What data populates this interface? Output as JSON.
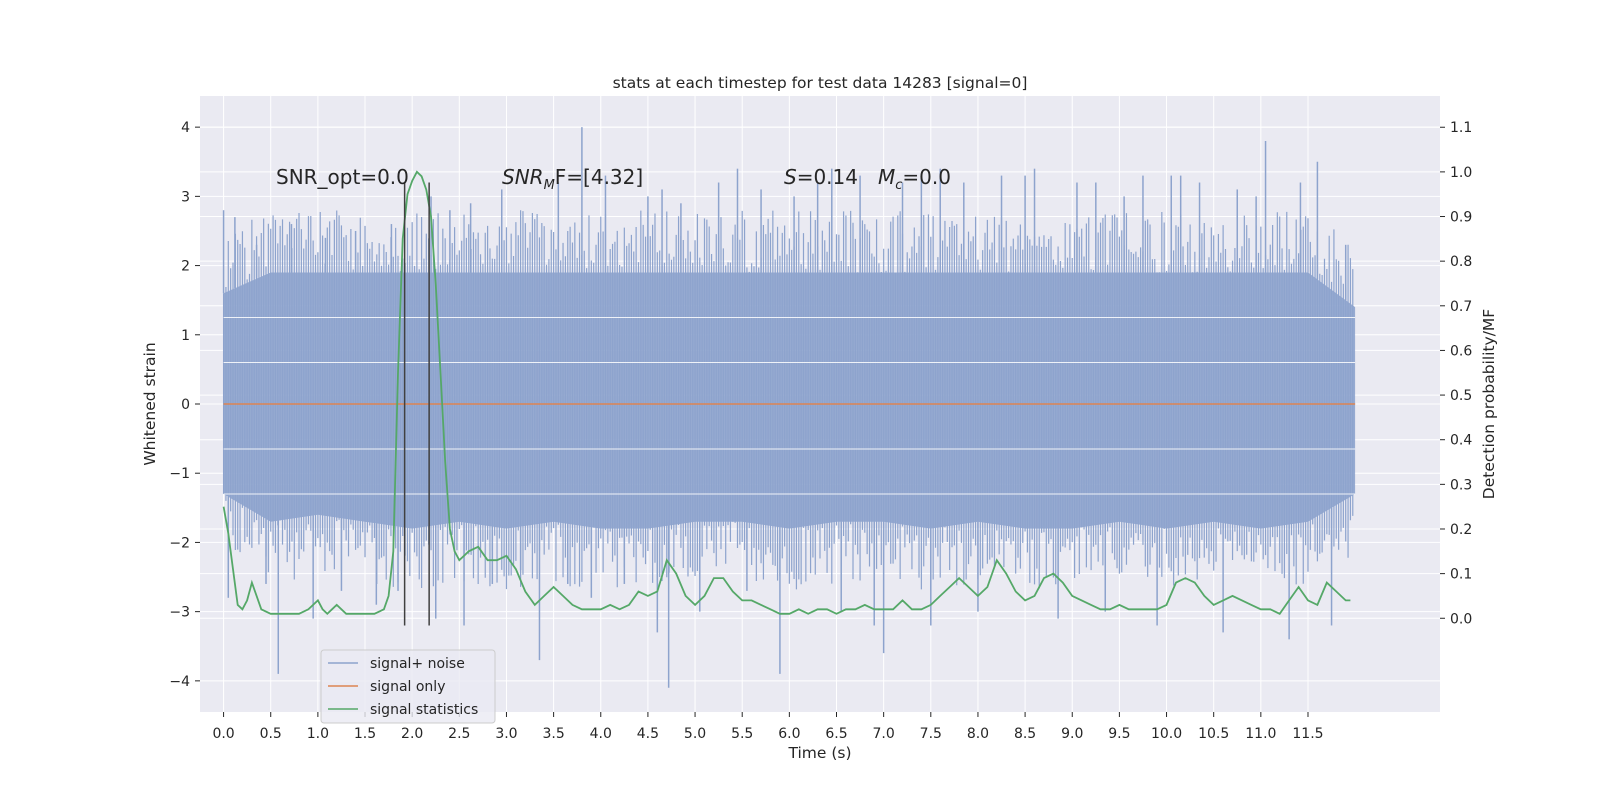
{
  "chart_data": {
    "type": "line",
    "title": "stats at each timestep for test data 14283 [signal=0]",
    "xlabel": "Time (s)",
    "ylabel": "Whitened strain",
    "ylabel_right": "Detection probability/MF",
    "xlim": [
      -0.25,
      12.9
    ],
    "ylim": [
      -4.45,
      4.45
    ],
    "ylim_right": [
      -0.21,
      1.17
    ],
    "x_ticks": [
      "0.0",
      "0.5",
      "1.0",
      "1.5",
      "2.0",
      "2.5",
      "3.0",
      "3.5",
      "4.0",
      "4.5",
      "5.0",
      "5.5",
      "6.0",
      "6.5",
      "7.0",
      "7.5",
      "8.0",
      "8.5",
      "9.0",
      "9.5",
      "10.0",
      "10.5",
      "11.0",
      "11.5"
    ],
    "y_ticks": [
      "4",
      "3",
      "2",
      "1",
      "0",
      "−1",
      "−2",
      "−3",
      "−4"
    ],
    "y_ticks_right": [
      "1.1",
      "1.0",
      "0.9",
      "0.8",
      "0.7",
      "0.6",
      "0.5",
      "0.4",
      "0.3",
      "0.2",
      "0.1",
      "0.0"
    ],
    "grid": true,
    "legend_position": "lower-left",
    "annotations": {
      "snr_opt": "SNR_opt=0.0",
      "snr_mf_label": "SNR",
      "snr_mf_sub": "M",
      "snr_mf_value": "F=[4.32]",
      "s_label": "S",
      "s_value": "=0.14",
      "mc_label": "M",
      "mc_sub": "c",
      "mc_value": "=0.0"
    },
    "vertical_lines_x": [
      1.92,
      2.18
    ],
    "noise_band": {
      "x_range": [
        0.0,
        12.0
      ],
      "envelope": [
        [
          0.0,
          -1.3,
          1.6
        ],
        [
          0.5,
          -1.7,
          1.9
        ],
        [
          1.0,
          -1.6,
          1.9
        ],
        [
          1.5,
          -1.7,
          1.9
        ],
        [
          2.0,
          -1.8,
          1.9
        ],
        [
          2.5,
          -1.7,
          1.9
        ],
        [
          3.0,
          -1.8,
          1.9
        ],
        [
          3.5,
          -1.7,
          1.9
        ],
        [
          4.0,
          -1.8,
          1.9
        ],
        [
          4.5,
          -1.8,
          1.9
        ],
        [
          5.0,
          -1.7,
          1.9
        ],
        [
          5.5,
          -1.7,
          1.9
        ],
        [
          6.0,
          -1.8,
          1.9
        ],
        [
          6.5,
          -1.7,
          1.9
        ],
        [
          7.0,
          -1.7,
          1.9
        ],
        [
          7.5,
          -1.8,
          1.9
        ],
        [
          8.0,
          -1.7,
          1.9
        ],
        [
          8.5,
          -1.8,
          1.9
        ],
        [
          9.0,
          -1.8,
          1.9
        ],
        [
          9.5,
          -1.7,
          1.9
        ],
        [
          10.0,
          -1.8,
          1.9
        ],
        [
          10.5,
          -1.7,
          1.9
        ],
        [
          11.0,
          -1.8,
          1.9
        ],
        [
          11.5,
          -1.7,
          1.9
        ],
        [
          12.0,
          -1.3,
          1.4
        ]
      ],
      "spikes": [
        [
          0.0,
          2.8
        ],
        [
          0.05,
          -2.8
        ],
        [
          0.12,
          2.7
        ],
        [
          0.35,
          2.3
        ],
        [
          0.45,
          -2.6
        ],
        [
          0.58,
          -3.9
        ],
        [
          0.72,
          2.6
        ],
        [
          0.95,
          -3.1
        ],
        [
          1.08,
          2.4
        ],
        [
          1.25,
          -2.7
        ],
        [
          1.4,
          2.5
        ],
        [
          1.62,
          -2.9
        ],
        [
          1.78,
          2.6
        ],
        [
          1.85,
          -2.7
        ],
        [
          2.2,
          3.0
        ],
        [
          2.25,
          -3.1
        ],
        [
          2.4,
          2.8
        ],
        [
          2.55,
          -3.2
        ],
        [
          2.62,
          2.9
        ],
        [
          2.85,
          -2.6
        ],
        [
          2.95,
          3.1
        ],
        [
          3.15,
          -2.4
        ],
        [
          3.35,
          -3.7
        ],
        [
          3.55,
          3.2
        ],
        [
          3.65,
          -2.6
        ],
        [
          3.8,
          4.0
        ],
        [
          3.9,
          -2.8
        ],
        [
          4.05,
          3.3
        ],
        [
          4.25,
          -2.6
        ],
        [
          4.5,
          3.0
        ],
        [
          4.6,
          -3.3
        ],
        [
          4.65,
          3.1
        ],
        [
          4.72,
          -4.1
        ],
        [
          4.85,
          2.9
        ],
        [
          5.05,
          -3.0
        ],
        [
          5.25,
          3.2
        ],
        [
          5.45,
          3.4
        ],
        [
          5.55,
          -2.7
        ],
        [
          5.7,
          3.1
        ],
        [
          5.9,
          -3.9
        ],
        [
          6.05,
          3.0
        ],
        [
          6.3,
          3.2
        ],
        [
          6.45,
          3.4
        ],
        [
          6.55,
          -3.0
        ],
        [
          6.75,
          3.3
        ],
        [
          6.9,
          -3.2
        ],
        [
          7.0,
          -3.6
        ],
        [
          7.2,
          3.2
        ],
        [
          7.4,
          3.3
        ],
        [
          7.5,
          -3.2
        ],
        [
          7.6,
          3.4
        ],
        [
          7.85,
          3.2
        ],
        [
          8.0,
          -3.0
        ],
        [
          8.25,
          3.3
        ],
        [
          8.5,
          3.3
        ],
        [
          8.6,
          3.4
        ],
        [
          8.85,
          -3.1
        ],
        [
          9.05,
          3.2
        ],
        [
          9.25,
          3.2
        ],
        [
          9.35,
          -3.0
        ],
        [
          9.55,
          3.0
        ],
        [
          9.75,
          3.3
        ],
        [
          9.9,
          -3.2
        ],
        [
          10.05,
          3.3
        ],
        [
          10.15,
          3.3
        ],
        [
          10.35,
          3.2
        ],
        [
          10.6,
          -3.3
        ],
        [
          10.75,
          3.1
        ],
        [
          10.95,
          3.0
        ],
        [
          11.05,
          3.8
        ],
        [
          11.3,
          -3.4
        ],
        [
          11.42,
          3.2
        ],
        [
          11.6,
          3.5
        ],
        [
          11.75,
          -3.2
        ],
        [
          11.9,
          2.3
        ]
      ]
    },
    "series": [
      {
        "name": "signal+ noise",
        "color": "#8da3cd",
        "kind": "noise_band"
      },
      {
        "name": "signal only",
        "color": "#dd8452",
        "x": [
          0.0,
          12.0
        ],
        "y": [
          0.0,
          0.0
        ]
      },
      {
        "name": "signal statistics",
        "color": "#55a868",
        "axis": "right",
        "x": [
          0.0,
          0.05,
          0.1,
          0.15,
          0.2,
          0.25,
          0.3,
          0.35,
          0.4,
          0.5,
          0.6,
          0.7,
          0.8,
          0.9,
          1.0,
          1.05,
          1.1,
          1.15,
          1.2,
          1.3,
          1.4,
          1.5,
          1.6,
          1.7,
          1.75,
          1.8,
          1.85,
          1.9,
          1.95,
          2.0,
          2.05,
          2.1,
          2.15,
          2.2,
          2.25,
          2.3,
          2.35,
          2.4,
          2.45,
          2.5,
          2.55,
          2.6,
          2.7,
          2.8,
          2.9,
          3.0,
          3.1,
          3.2,
          3.3,
          3.4,
          3.5,
          3.6,
          3.7,
          3.8,
          3.9,
          4.0,
          4.1,
          4.2,
          4.3,
          4.4,
          4.5,
          4.6,
          4.7,
          4.8,
          4.9,
          5.0,
          5.1,
          5.2,
          5.3,
          5.4,
          5.5,
          5.6,
          5.7,
          5.8,
          5.9,
          6.0,
          6.1,
          6.2,
          6.3,
          6.4,
          6.5,
          6.6,
          6.7,
          6.8,
          6.9,
          7.0,
          7.1,
          7.2,
          7.3,
          7.4,
          7.5,
          7.6,
          7.7,
          7.8,
          7.9,
          8.0,
          8.1,
          8.2,
          8.3,
          8.4,
          8.5,
          8.6,
          8.7,
          8.8,
          8.9,
          9.0,
          9.1,
          9.2,
          9.3,
          9.4,
          9.5,
          9.6,
          9.7,
          9.8,
          9.9,
          10.0,
          10.1,
          10.2,
          10.3,
          10.4,
          10.5,
          10.6,
          10.7,
          10.8,
          10.9,
          11.0,
          11.1,
          11.2,
          11.3,
          11.4,
          11.5,
          11.6,
          11.7,
          11.8,
          11.9,
          11.95
        ],
        "y": [
          0.25,
          0.19,
          0.11,
          0.03,
          0.02,
          0.04,
          0.08,
          0.05,
          0.02,
          0.01,
          0.01,
          0.01,
          0.01,
          0.02,
          0.04,
          0.02,
          0.01,
          0.02,
          0.03,
          0.01,
          0.01,
          0.01,
          0.01,
          0.02,
          0.05,
          0.15,
          0.55,
          0.85,
          0.95,
          0.98,
          1.0,
          0.99,
          0.96,
          0.9,
          0.75,
          0.55,
          0.35,
          0.2,
          0.15,
          0.13,
          0.14,
          0.15,
          0.16,
          0.13,
          0.13,
          0.14,
          0.11,
          0.06,
          0.03,
          0.05,
          0.07,
          0.05,
          0.03,
          0.02,
          0.02,
          0.02,
          0.03,
          0.02,
          0.03,
          0.06,
          0.05,
          0.06,
          0.13,
          0.1,
          0.05,
          0.03,
          0.05,
          0.09,
          0.09,
          0.06,
          0.04,
          0.04,
          0.03,
          0.02,
          0.01,
          0.01,
          0.02,
          0.01,
          0.02,
          0.02,
          0.01,
          0.02,
          0.02,
          0.03,
          0.02,
          0.02,
          0.02,
          0.04,
          0.02,
          0.02,
          0.03,
          0.05,
          0.07,
          0.09,
          0.07,
          0.05,
          0.07,
          0.13,
          0.1,
          0.06,
          0.04,
          0.05,
          0.09,
          0.1,
          0.08,
          0.05,
          0.04,
          0.03,
          0.02,
          0.02,
          0.03,
          0.02,
          0.02,
          0.02,
          0.02,
          0.03,
          0.08,
          0.09,
          0.08,
          0.05,
          0.03,
          0.04,
          0.05,
          0.04,
          0.03,
          0.02,
          0.02,
          0.01,
          0.04,
          0.07,
          0.04,
          0.03,
          0.08,
          0.06,
          0.04,
          0.04
        ]
      }
    ]
  }
}
